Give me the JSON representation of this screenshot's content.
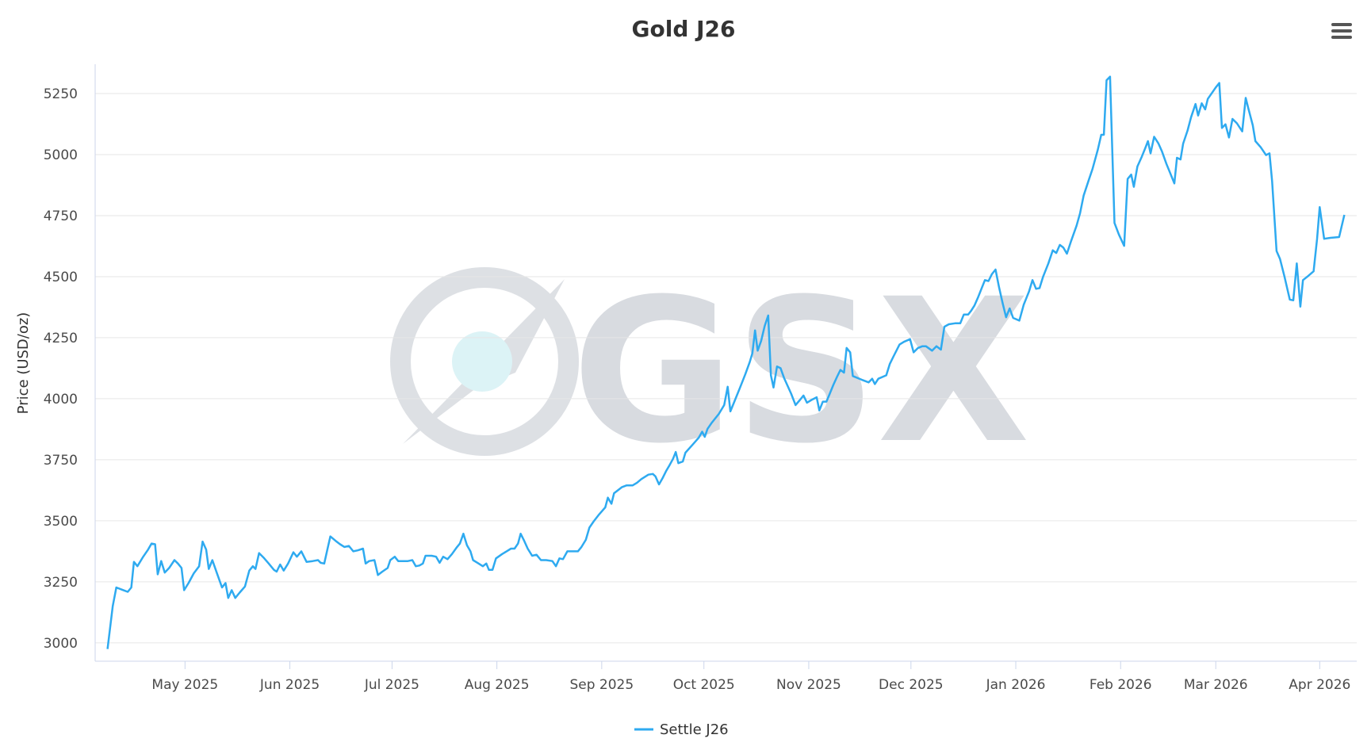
{
  "chart_data": {
    "type": "line",
    "title": "Gold J26",
    "y_label": "Price (USD/oz)",
    "watermark": "GSX",
    "legend_position": "bottom",
    "grid": true,
    "xlim": [
      -102,
      1330
    ],
    "xticks": [
      {
        "value": 0,
        "label": "May 2025"
      },
      {
        "value": 119,
        "label": "Jun 2025"
      },
      {
        "value": 235,
        "label": "Jul 2025"
      },
      {
        "value": 354,
        "label": "Aug 2025"
      },
      {
        "value": 473,
        "label": "Sep 2025"
      },
      {
        "value": 589,
        "label": "Oct 2025"
      },
      {
        "value": 708,
        "label": "Nov 2025"
      },
      {
        "value": 824,
        "label": "Dec 2025"
      },
      {
        "value": 943,
        "label": "Jan 2026"
      },
      {
        "value": 1062,
        "label": "Feb 2026"
      },
      {
        "value": 1170,
        "label": "Mar 2026"
      },
      {
        "value": 1288,
        "label": "Apr 2026"
      }
    ],
    "ylim": [
      2925,
      5370
    ],
    "yticks": [
      3000,
      3250,
      3500,
      3750,
      4000,
      4250,
      4500,
      4750,
      5000,
      5250
    ],
    "x": [
      -88,
      -82,
      -78,
      -70,
      -65,
      -61,
      -58,
      -54,
      -48,
      -42,
      -38,
      -34,
      -31,
      -27,
      -23,
      -18,
      -12,
      -8,
      -4,
      -1,
      4,
      10,
      16,
      20,
      24,
      27,
      31,
      36,
      42,
      46,
      49,
      53,
      57,
      62,
      68,
      73,
      77,
      80,
      84,
      89,
      95,
      101,
      104,
      108,
      112,
      117,
      123,
      127,
      132,
      138,
      145,
      151,
      154,
      158,
      162,
      165,
      171,
      176,
      181,
      186,
      191,
      196,
      202,
      205,
      209,
      215,
      219,
      224,
      230,
      233,
      238,
      242,
      248,
      253,
      258,
      262,
      266,
      270,
      273,
      280,
      285,
      289,
      293,
      298,
      303,
      308,
      312,
      316,
      320,
      324,
      327,
      332,
      338,
      342,
      345,
      349,
      353,
      360,
      365,
      370,
      374,
      378,
      381,
      385,
      389,
      394,
      399,
      404,
      410,
      417,
      421,
      425,
      429,
      434,
      441,
      446,
      450,
      455,
      459,
      464,
      470,
      477,
      480,
      484,
      487,
      491,
      496,
      501,
      508,
      513,
      518,
      526,
      531,
      534,
      538,
      542,
      546,
      550,
      554,
      557,
      560,
      565,
      568,
      576,
      583,
      587,
      590,
      593,
      598,
      606,
      612,
      616,
      619,
      624,
      630,
      636,
      641,
      644,
      647,
      650,
      654,
      658,
      662,
      665,
      668,
      672,
      676,
      680,
      688,
      693,
      698,
      702,
      706,
      711,
      717,
      720,
      724,
      728,
      731,
      736,
      740,
      744,
      748,
      751,
      755,
      758,
      768,
      776,
      780,
      783,
      787,
      796,
      800,
      804,
      811,
      816,
      823,
      827,
      832,
      837,
      841,
      848,
      853,
      858,
      862,
      867,
      874,
      880,
      884,
      889,
      892,
      896,
      900,
      904,
      908,
      912,
      916,
      920,
      924,
      928,
      932,
      936,
      940,
      947,
      952,
      958,
      962,
      966,
      970,
      974,
      980,
      985,
      989,
      993,
      997,
      1001,
      1006,
      1012,
      1016,
      1020,
      1026,
      1030,
      1036,
      1040,
      1043,
      1046,
      1050,
      1055,
      1060,
      1066,
      1070,
      1074,
      1077,
      1081,
      1086,
      1090,
      1093,
      1096,
      1100,
      1105,
      1109,
      1114,
      1118,
      1123,
      1126,
      1130,
      1133,
      1138,
      1142,
      1147,
      1150,
      1154,
      1158,
      1161,
      1166,
      1170,
      1174,
      1177,
      1181,
      1185,
      1189,
      1194,
      1200,
      1204,
      1207,
      1212,
      1215,
      1221,
      1227,
      1231,
      1234,
      1239,
      1243,
      1248,
      1254,
      1258,
      1262,
      1266,
      1269,
      1274,
      1281,
      1285,
      1288,
      1293,
      1300,
      1310,
      1316
    ],
    "series": [
      {
        "name": "Settle J26",
        "color": "#2eaaf0",
        "values": [
          2975,
          3151,
          3227,
          3216,
          3209,
          3227,
          3332,
          3314,
          3350,
          3382,
          3407,
          3404,
          3281,
          3335,
          3288,
          3307,
          3339,
          3325,
          3307,
          3216,
          3245,
          3285,
          3314,
          3415,
          3382,
          3303,
          3339,
          3288,
          3227,
          3245,
          3184,
          3216,
          3184,
          3206,
          3231,
          3296,
          3314,
          3303,
          3368,
          3350,
          3325,
          3299,
          3292,
          3321,
          3296,
          3325,
          3371,
          3353,
          3375,
          3332,
          3335,
          3339,
          3328,
          3325,
          3389,
          3436,
          3418,
          3404,
          3393,
          3397,
          3375,
          3379,
          3386,
          3325,
          3335,
          3339,
          3278,
          3292,
          3307,
          3339,
          3353,
          3335,
          3335,
          3335,
          3339,
          3314,
          3317,
          3325,
          3357,
          3357,
          3353,
          3328,
          3353,
          3343,
          3364,
          3389,
          3407,
          3447,
          3400,
          3375,
          3339,
          3328,
          3314,
          3325,
          3299,
          3299,
          3346,
          3364,
          3375,
          3386,
          3386,
          3407,
          3447,
          3418,
          3386,
          3357,
          3361,
          3339,
          3339,
          3335,
          3314,
          3346,
          3343,
          3375,
          3375,
          3375,
          3393,
          3422,
          3472,
          3498,
          3526,
          3555,
          3595,
          3570,
          3613,
          3624,
          3638,
          3645,
          3645,
          3656,
          3671,
          3689,
          3692,
          3682,
          3649,
          3674,
          3703,
          3728,
          3754,
          3782,
          3736,
          3743,
          3779,
          3811,
          3840,
          3865,
          3844,
          3876,
          3902,
          3938,
          3974,
          4049,
          3948,
          3992,
          4046,
          4100,
          4150,
          4186,
          4280,
          4197,
          4237,
          4298,
          4341,
          4096,
          4046,
          4132,
          4125,
          4085,
          4021,
          3974,
          3995,
          4013,
          3984,
          3995,
          4006,
          3952,
          3988,
          3988,
          4013,
          4057,
          4089,
          4118,
          4107,
          4208,
          4190,
          4093,
          4078,
          4067,
          4082,
          4060,
          4082,
          4096,
          4143,
          4172,
          4222,
          4233,
          4244,
          4190,
          4208,
          4215,
          4215,
          4197,
          4215,
          4201,
          4295,
          4305,
          4309,
          4309,
          4345,
          4345,
          4359,
          4381,
          4414,
          4450,
          4486,
          4482,
          4511,
          4529,
          4457,
          4392,
          4334,
          4370,
          4331,
          4320,
          4385,
          4439,
          4486,
          4450,
          4453,
          4500,
          4554,
          4608,
          4597,
          4630,
          4619,
          4594,
          4648,
          4709,
          4760,
          4832,
          4897,
          4940,
          5019,
          5081,
          5081,
          5304,
          5319,
          4720,
          4673,
          4626,
          4900,
          4918,
          4868,
          4951,
          4991,
          5027,
          5055,
          5005,
          5073,
          5045,
          5012,
          4962,
          4926,
          4882,
          4987,
          4980,
          5045,
          5099,
          5153,
          5207,
          5160,
          5210,
          5185,
          5228,
          5254,
          5275,
          5293,
          5109,
          5124,
          5070,
          5146,
          5128,
          5095,
          5232,
          5189,
          5120,
          5055,
          5030,
          4998,
          5005,
          4890,
          4605,
          4572,
          4500,
          4406,
          4403,
          4554,
          4377,
          4486,
          4500,
          4522,
          4655,
          4785,
          4655,
          4659,
          4662,
          4753
        ]
      }
    ]
  }
}
